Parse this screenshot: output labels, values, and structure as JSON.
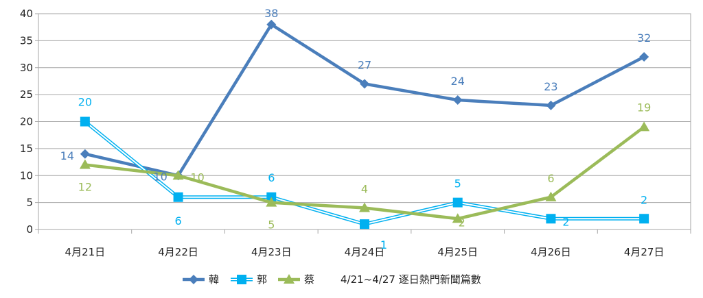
{
  "chart_data": {
    "type": "line",
    "title": "4/21~4/27 逐日熱門新聞篇數",
    "categories": [
      "4月21日",
      "4月22日",
      "4月23日",
      "4月24日",
      "4月25日",
      "4月26日",
      "4月27日"
    ],
    "ylim": [
      0,
      40
    ],
    "yticks": [
      0,
      5,
      10,
      15,
      20,
      25,
      30,
      35,
      40
    ],
    "grid": true,
    "legend_position": "bottom",
    "series": [
      {
        "name": "韓",
        "values": [
          14,
          10,
          38,
          27,
          24,
          23,
          32
        ],
        "color": "#4a7ebb",
        "marker": "diamond"
      },
      {
        "name": "郭",
        "values": [
          20,
          6,
          6,
          1,
          5,
          2,
          2
        ],
        "color": "#00b0f0",
        "marker": "square"
      },
      {
        "name": "蔡",
        "values": [
          12,
          10,
          5,
          4,
          2,
          6,
          19
        ],
        "color": "#9bbb59",
        "marker": "triangle"
      }
    ]
  }
}
